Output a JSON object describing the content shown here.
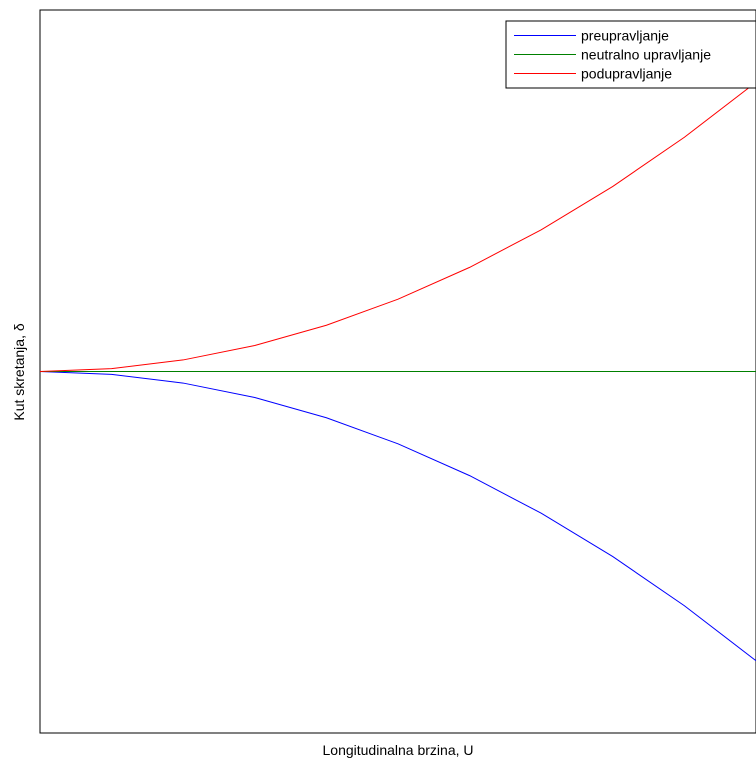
{
  "chart_data": {
    "type": "line",
    "xlabel": "Longitudinalna brzina, U",
    "ylabel": "Kut skretanja, δ",
    "xlim": [
      0,
      1
    ],
    "ylim": [
      -1,
      1
    ],
    "x_tick_labels": [],
    "y_tick_labels": [],
    "grid": false,
    "legend_position": "top-right",
    "series": [
      {
        "name": "preupravljanje",
        "color": "#0000ff",
        "x": [
          0,
          0.1,
          0.2,
          0.3,
          0.4,
          0.5,
          0.6,
          0.7,
          0.8,
          0.9,
          1.0
        ],
        "y": [
          0,
          -0.008,
          -0.032,
          -0.072,
          -0.128,
          -0.2,
          -0.288,
          -0.392,
          -0.512,
          -0.648,
          -0.8
        ]
      },
      {
        "name": "neutralno upravljanje",
        "color": "#008000",
        "x": [
          0,
          1.0
        ],
        "y": [
          0,
          0
        ]
      },
      {
        "name": "podupravljanje",
        "color": "#ff0000",
        "x": [
          0,
          0.1,
          0.2,
          0.3,
          0.4,
          0.5,
          0.6,
          0.7,
          0.8,
          0.9,
          1.0
        ],
        "y": [
          0,
          0.008,
          0.032,
          0.072,
          0.128,
          0.2,
          0.288,
          0.392,
          0.512,
          0.648,
          0.8
        ]
      }
    ]
  }
}
